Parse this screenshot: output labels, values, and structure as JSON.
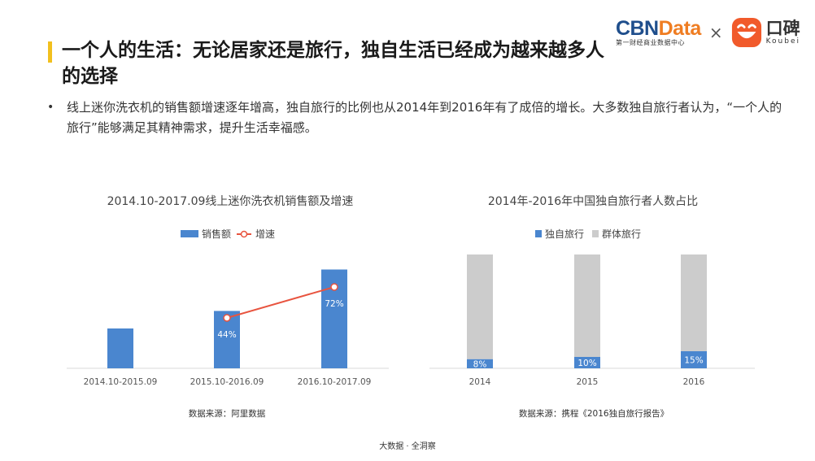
{
  "brand": {
    "cbn_part1": "CBN",
    "cbn_part2": "Data",
    "cbn_sub": "第一财经商业数据中心",
    "times": "×",
    "koubei_cn": "口碑",
    "koubei_en": "Koubei",
    "colors": {
      "cbn": "#1f4e8c",
      "data": "#ef7d22",
      "koubei": "#f15a2b",
      "accent": "#f2c01e"
    }
  },
  "page": {
    "title": "一个人的生活：无论居家还是旅行，独自生活已经成为越来越多人的选择",
    "bullet": "线上迷你洗衣机的销售额增速逐年增高，独自旅行的比例也从2014年到2016年有了成倍的增长。大多数独自旅行者认为，“一个人的旅行”能够满足其精神需求，提升生活幸福感。",
    "footer": "大数据 · 全洞察"
  },
  "chart_data": [
    {
      "type": "bar",
      "title": "2014.10-2017.09线上迷你洗衣机销售额及增速",
      "categories": [
        "2014.10-2015.09",
        "2015.10-2016.09",
        "2016.10-2017.09"
      ],
      "series": [
        {
          "name": "销售额",
          "values": [
            1.0,
            1.44,
            2.48
          ],
          "color": "#4a86cf"
        },
        {
          "name": "增速",
          "type": "line",
          "values": [
            null,
            44,
            72
          ],
          "labels": [
            "",
            "44%",
            "72%"
          ],
          "color": "#e8543f"
        }
      ],
      "legend": "top-center",
      "source": "数据来源：阿里数据"
    },
    {
      "type": "bar",
      "stacked": true,
      "title": "2014年-2016年中国独自旅行者人数占比",
      "categories": [
        "2014",
        "2015",
        "2016"
      ],
      "series": [
        {
          "name": "独自旅行",
          "values": [
            8,
            10,
            15
          ],
          "labels": [
            "8%",
            "10%",
            "15%"
          ],
          "color": "#4a86cf"
        },
        {
          "name": "群体旅行",
          "values": [
            92,
            90,
            85
          ],
          "color": "#cccccc"
        }
      ],
      "ylim": [
        0,
        100
      ],
      "legend": "top-center",
      "source": "数据来源：携程《2016独自旅行报告》"
    }
  ]
}
